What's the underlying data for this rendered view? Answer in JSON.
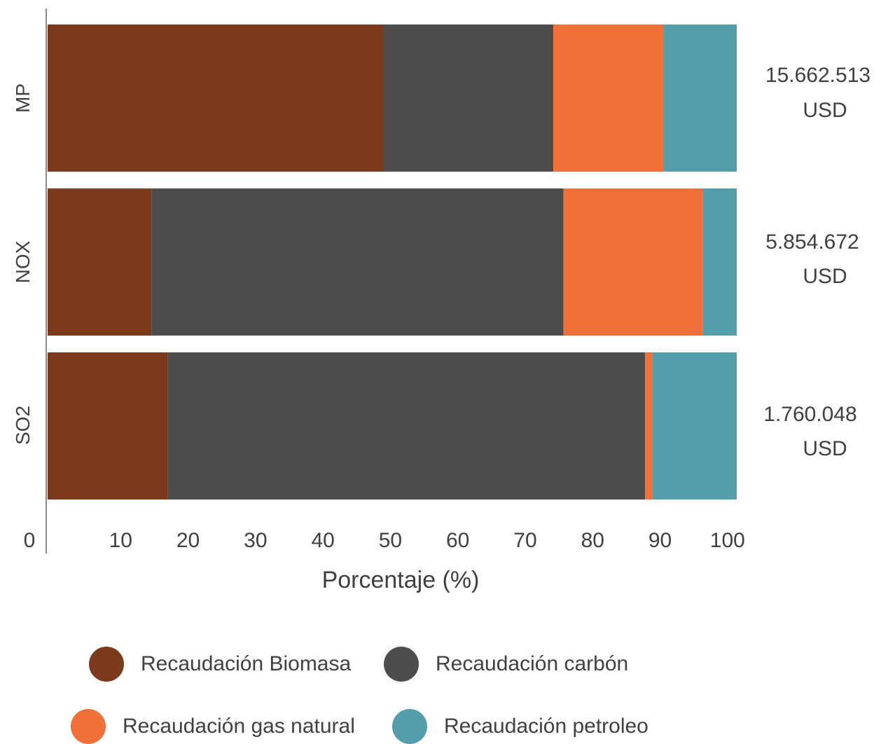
{
  "chart_data": {
    "type": "bar",
    "orientation": "horizontal",
    "stacked": true,
    "categories": [
      "MP",
      "NOX",
      "SO2"
    ],
    "totals": [
      {
        "value": "15.662.513",
        "unit": "USD"
      },
      {
        "value": "5.854.672",
        "unit": "USD"
      },
      {
        "value": "1.760.048",
        "unit": "USD"
      }
    ],
    "series": [
      {
        "name": "Recaudación Biomasa",
        "color": "#7B3A1C",
        "values": [
          49.8,
          15.4,
          17.8
        ]
      },
      {
        "name": "Recaudación carbón",
        "color": "#4D4D4D",
        "values": [
          25.2,
          61.1,
          70.8
        ]
      },
      {
        "name": "Recaudación gas natural",
        "color": "#F07039",
        "values": [
          16.4,
          20.7,
          1.1
        ]
      },
      {
        "name": "Recaudación petroleo",
        "color": "#549DAA",
        "values": [
          10.8,
          5.0,
          12.5
        ]
      }
    ],
    "x_ticks": [
      "0",
      "10",
      "20",
      "30",
      "40",
      "50",
      "60",
      "70",
      "80",
      "90",
      "100"
    ],
    "xlabel": "Porcentaje (%)",
    "ylabel": "",
    "xlim": [
      0,
      102.2
    ],
    "grid": false,
    "legend_position": "bottom"
  }
}
